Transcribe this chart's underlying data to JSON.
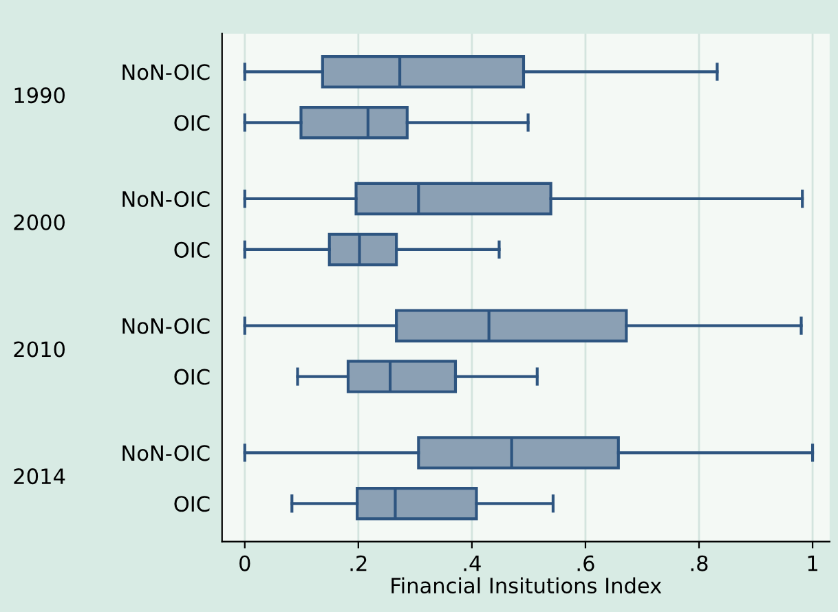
{
  "chart_data": {
    "type": "box",
    "orientation": "horizontal",
    "xlabel": "Financial Insitutions Index",
    "categories": [
      "NoN-OIC",
      "OIC",
      "NoN-OIC",
      "OIC",
      "NoN-OIC",
      "OIC",
      "NoN-OIC",
      "OIC"
    ],
    "annotations": [
      "1990",
      "2000",
      "2010",
      "2014"
    ],
    "color": "#8ba0b4",
    "boxes": [
      {
        "low": 0,
        "q1": 0.137,
        "median": 0.273,
        "q3": 0.491,
        "high": 0.832
      },
      {
        "low": 0,
        "q1": 0.099,
        "median": 0.217,
        "q3": 0.286,
        "high": 0.499
      },
      {
        "low": 0,
        "q1": 0.196,
        "median": 0.306,
        "q3": 0.539,
        "high": 0.982
      },
      {
        "low": 0,
        "q1": 0.149,
        "median": 0.202,
        "q3": 0.267,
        "high": 0.448
      },
      {
        "low": 0,
        "q1": 0.267,
        "median": 0.43,
        "q3": 0.672,
        "high": 0.98
      },
      {
        "low": 0.093,
        "q1": 0.182,
        "median": 0.256,
        "q3": 0.371,
        "high": 0.515
      },
      {
        "low": 0,
        "q1": 0.306,
        "median": 0.47,
        "q3": 0.658,
        "high": 1.0
      },
      {
        "low": 0.083,
        "q1": 0.198,
        "median": 0.265,
        "q3": 0.408,
        "high": 0.543
      }
    ],
    "xlim": [
      -0.04,
      1.03
    ],
    "xticks": [
      0,
      {
        "value": 0.2,
        "label": ".2"
      },
      {
        "value": 0.4,
        "label": ".4"
      },
      {
        "value": 0.6,
        "label": ".6"
      },
      {
        "value": 0.8,
        "label": ".8"
      },
      1
    ],
    "grid": "x",
    "legend": false
  }
}
